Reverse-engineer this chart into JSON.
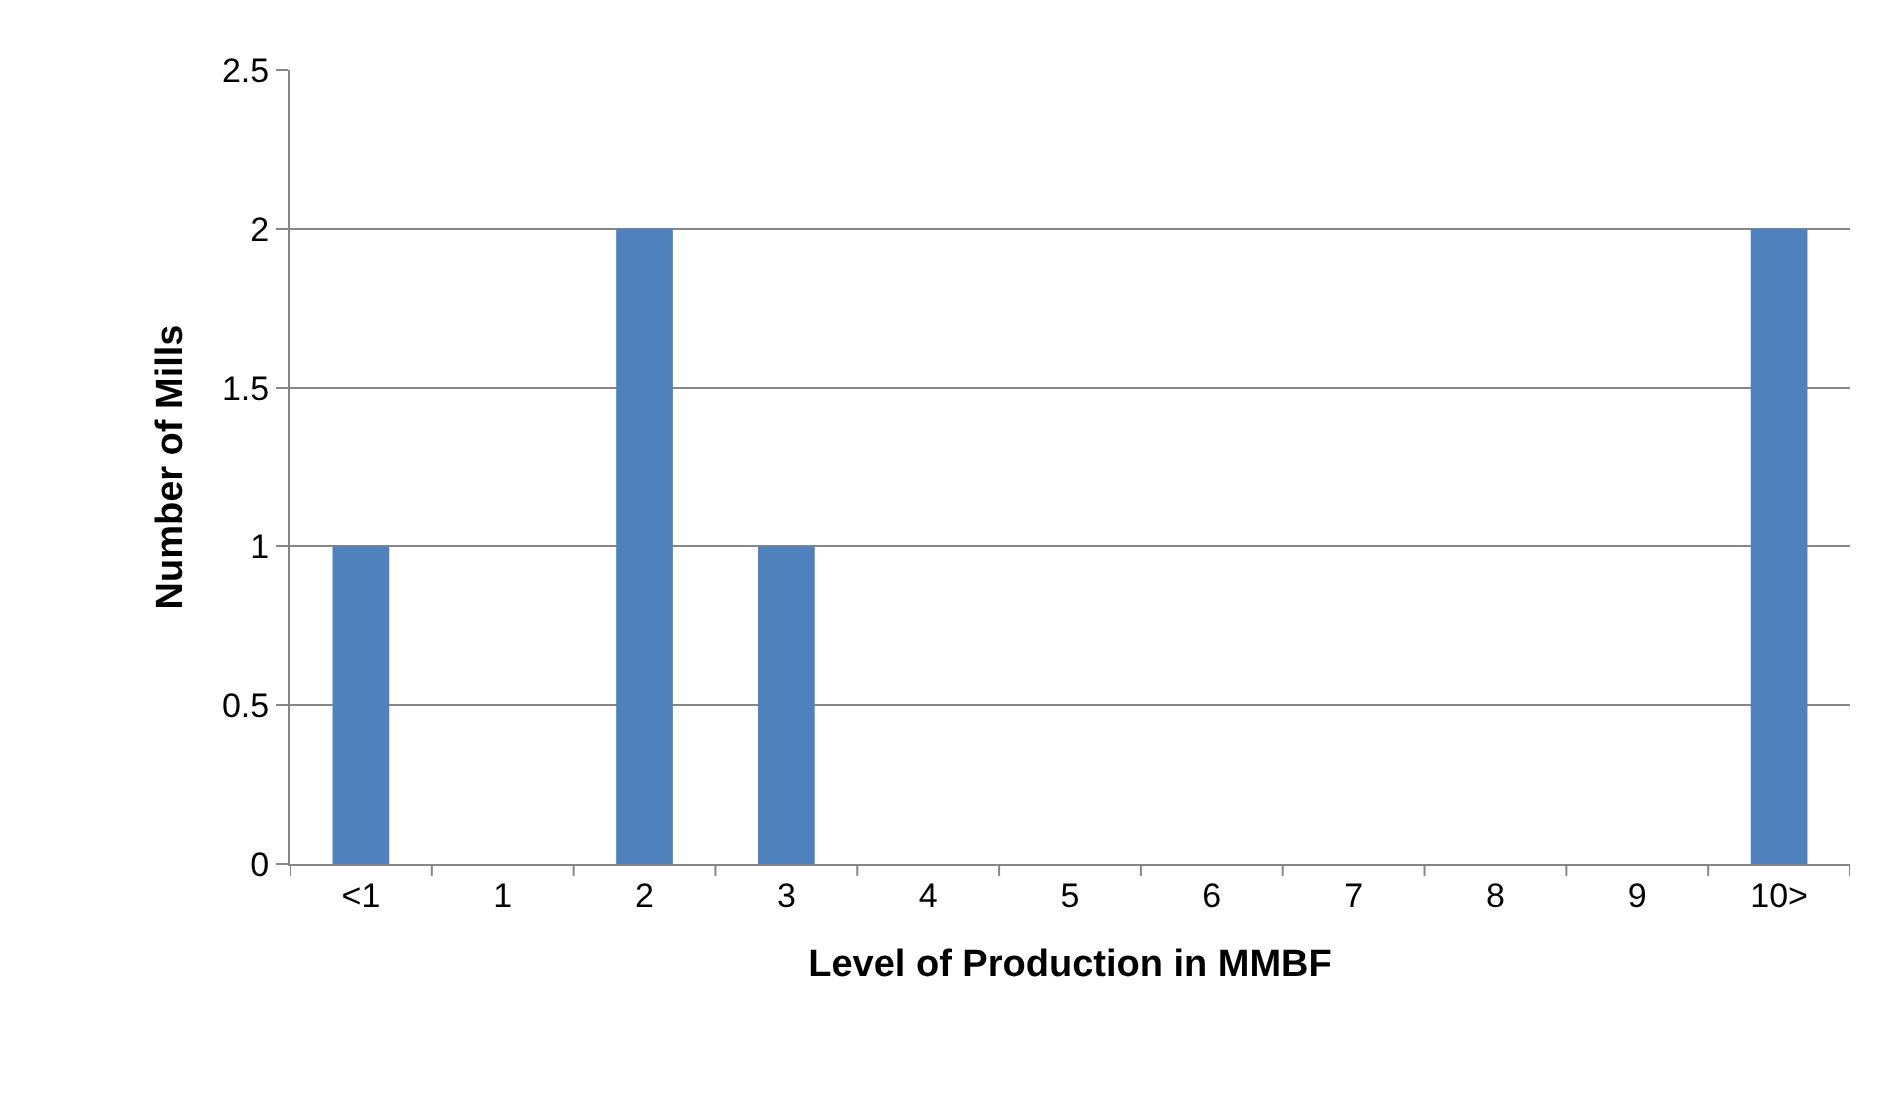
{
  "chart_data": {
    "type": "bar",
    "xlabel": "Level of Production in MMBF",
    "ylabel": "Number of Mills",
    "categories": [
      "<1",
      "1",
      "2",
      "3",
      "4",
      "5",
      "6",
      "7",
      "8",
      "9",
      "10>"
    ],
    "values": [
      1,
      0,
      2,
      1,
      0,
      0,
      0,
      0,
      0,
      0,
      2
    ],
    "color": "#4f81bd",
    "ylim": [
      0,
      2.5
    ],
    "yticks": [
      0,
      0.5,
      1,
      1.5,
      2,
      2.5
    ],
    "grid": "y"
  }
}
